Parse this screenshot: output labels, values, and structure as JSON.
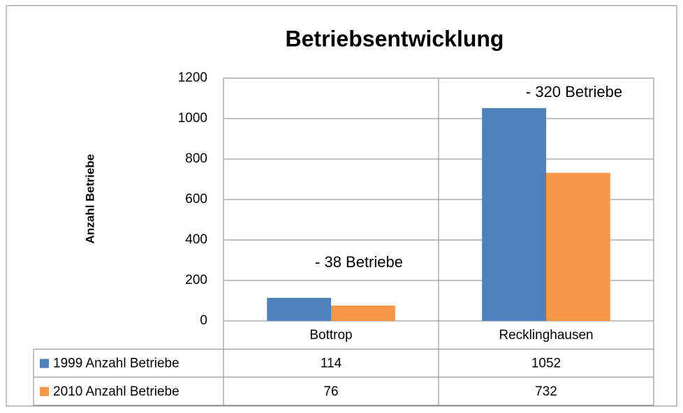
{
  "chart_data": {
    "type": "bar",
    "title": "Betriebsentwicklung",
    "y_label": "Anzahl Betriebe",
    "categories": [
      "Bottrop",
      "Recklinghausen"
    ],
    "series": [
      {
        "name": "1999 Anzahl Betriebe",
        "color": "#4f81bd",
        "values": [
          114,
          1052
        ]
      },
      {
        "name": "2010 Anzahl Betriebe",
        "color": "#f79646",
        "values": [
          76,
          732
        ]
      }
    ],
    "annotations": [
      "- 38 Betriebe",
      "- 320 Betriebe"
    ],
    "ylim": [
      0,
      1200
    ],
    "yticks": [
      0,
      200,
      400,
      600,
      800,
      1000,
      1200
    ],
    "grid": true,
    "legend": "table"
  }
}
